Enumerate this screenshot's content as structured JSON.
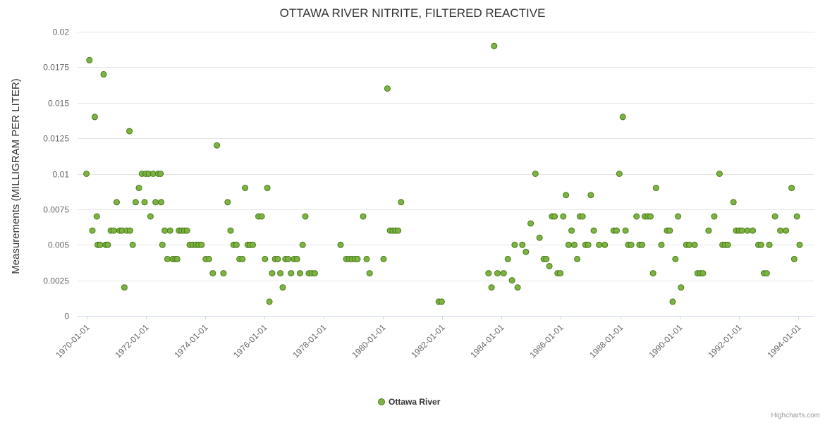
{
  "chart_data": {
    "type": "scatter",
    "title": "OTTAWA RIVER NITRITE, FILTERED REACTIVE",
    "xlabel": "",
    "ylabel": "Measurements (MILLIGRAM PER LITER)",
    "series_name": "Ottawa River",
    "legend": [
      "Ottawa River"
    ],
    "legend_position": "bottom-center",
    "grid": "horizontal",
    "x_range": [
      1969.7,
      1994.55
    ],
    "ylim": [
      0,
      0.02
    ],
    "yticks": [
      {
        "v": 0,
        "label": "0"
      },
      {
        "v": 0.0025,
        "label": "0.0025"
      },
      {
        "v": 0.005,
        "label": "0.005"
      },
      {
        "v": 0.0075,
        "label": "0.0075"
      },
      {
        "v": 0.01,
        "label": "0.01"
      },
      {
        "v": 0.0125,
        "label": "0.0125"
      },
      {
        "v": 0.015,
        "label": "0.015"
      },
      {
        "v": 0.0175,
        "label": "0.0175"
      },
      {
        "v": 0.02,
        "label": "0.02"
      }
    ],
    "xticks": [
      {
        "v": 1970,
        "label": "1970-01-01"
      },
      {
        "v": 1972,
        "label": "1972-01-01"
      },
      {
        "v": 1974,
        "label": "1974-01-01"
      },
      {
        "v": 1976,
        "label": "1976-01-01"
      },
      {
        "v": 1978,
        "label": "1978-01-01"
      },
      {
        "v": 1980,
        "label": "1980-01-01"
      },
      {
        "v": 1982,
        "label": "1982-01-01"
      },
      {
        "v": 1984,
        "label": "1984-01-01"
      },
      {
        "v": 1986,
        "label": "1986-01-01"
      },
      {
        "v": 1988,
        "label": "1988-01-01"
      },
      {
        "v": 1990,
        "label": "1990-01-01"
      },
      {
        "v": 1992,
        "label": "1992-01-01"
      },
      {
        "v": 1994,
        "label": "1994-01-01"
      }
    ],
    "points": [
      [
        1970.0,
        0.01
      ],
      [
        1970.1,
        0.018
      ],
      [
        1970.2,
        0.006
      ],
      [
        1970.28,
        0.014
      ],
      [
        1970.35,
        0.007
      ],
      [
        1970.38,
        0.005
      ],
      [
        1970.46,
        0.005
      ],
      [
        1970.58,
        0.017
      ],
      [
        1970.65,
        0.005
      ],
      [
        1970.72,
        0.005
      ],
      [
        1970.82,
        0.006
      ],
      [
        1970.92,
        0.006
      ],
      [
        1971.02,
        0.008
      ],
      [
        1971.12,
        0.006
      ],
      [
        1971.2,
        0.006
      ],
      [
        1971.28,
        0.002
      ],
      [
        1971.36,
        0.006
      ],
      [
        1971.45,
        0.013
      ],
      [
        1971.47,
        0.006
      ],
      [
        1971.56,
        0.005
      ],
      [
        1971.66,
        0.008
      ],
      [
        1971.77,
        0.009
      ],
      [
        1971.87,
        0.01
      ],
      [
        1971.96,
        0.008
      ],
      [
        1972.0,
        0.01
      ],
      [
        1972.1,
        0.01
      ],
      [
        1972.16,
        0.007
      ],
      [
        1972.25,
        0.01
      ],
      [
        1972.33,
        0.008
      ],
      [
        1972.42,
        0.01
      ],
      [
        1972.5,
        0.01
      ],
      [
        1972.52,
        0.008
      ],
      [
        1972.56,
        0.005
      ],
      [
        1972.64,
        0.006
      ],
      [
        1972.73,
        0.004
      ],
      [
        1972.82,
        0.006
      ],
      [
        1972.91,
        0.004
      ],
      [
        1973.0,
        0.004
      ],
      [
        1973.06,
        0.004
      ],
      [
        1973.12,
        0.006
      ],
      [
        1973.21,
        0.006
      ],
      [
        1973.3,
        0.006
      ],
      [
        1973.39,
        0.006
      ],
      [
        1973.48,
        0.005
      ],
      [
        1973.58,
        0.005
      ],
      [
        1973.69,
        0.005
      ],
      [
        1973.78,
        0.005
      ],
      [
        1973.88,
        0.005
      ],
      [
        1974.02,
        0.004
      ],
      [
        1974.13,
        0.004
      ],
      [
        1974.26,
        0.003
      ],
      [
        1974.4,
        0.012
      ],
      [
        1974.62,
        0.003
      ],
      [
        1974.76,
        0.008
      ],
      [
        1974.86,
        0.006
      ],
      [
        1974.96,
        0.005
      ],
      [
        1975.06,
        0.005
      ],
      [
        1975.16,
        0.004
      ],
      [
        1975.26,
        0.004
      ],
      [
        1975.35,
        0.009
      ],
      [
        1975.44,
        0.005
      ],
      [
        1975.52,
        0.005
      ],
      [
        1975.61,
        0.005
      ],
      [
        1975.8,
        0.007
      ],
      [
        1975.91,
        0.007
      ],
      [
        1976.02,
        0.004
      ],
      [
        1976.1,
        0.009
      ],
      [
        1976.17,
        0.001
      ],
      [
        1976.26,
        0.003
      ],
      [
        1976.36,
        0.004
      ],
      [
        1976.45,
        0.004
      ],
      [
        1976.54,
        0.003
      ],
      [
        1976.62,
        0.002
      ],
      [
        1976.71,
        0.004
      ],
      [
        1976.8,
        0.004
      ],
      [
        1976.9,
        0.003
      ],
      [
        1977.0,
        0.004
      ],
      [
        1977.1,
        0.004
      ],
      [
        1977.2,
        0.003
      ],
      [
        1977.29,
        0.005
      ],
      [
        1977.38,
        0.007
      ],
      [
        1977.5,
        0.003
      ],
      [
        1977.6,
        0.003
      ],
      [
        1977.7,
        0.003
      ],
      [
        1978.57,
        0.005
      ],
      [
        1978.76,
        0.004
      ],
      [
        1978.86,
        0.004
      ],
      [
        1978.95,
        0.004
      ],
      [
        1979.05,
        0.004
      ],
      [
        1979.14,
        0.004
      ],
      [
        1979.33,
        0.007
      ],
      [
        1979.45,
        0.004
      ],
      [
        1979.55,
        0.003
      ],
      [
        1980.02,
        0.004
      ],
      [
        1980.15,
        0.016
      ],
      [
        1980.24,
        0.006
      ],
      [
        1980.33,
        0.006
      ],
      [
        1980.42,
        0.006
      ],
      [
        1980.51,
        0.006
      ],
      [
        1980.61,
        0.008
      ],
      [
        1981.88,
        0.001
      ],
      [
        1981.98,
        0.001
      ],
      [
        1983.56,
        0.003
      ],
      [
        1983.66,
        0.002
      ],
      [
        1983.75,
        0.019
      ],
      [
        1983.86,
        0.003
      ],
      [
        1984.07,
        0.003
      ],
      [
        1984.21,
        0.004
      ],
      [
        1984.35,
        0.0025
      ],
      [
        1984.44,
        0.005
      ],
      [
        1984.54,
        0.002
      ],
      [
        1984.7,
        0.005
      ],
      [
        1984.82,
        0.0045
      ],
      [
        1984.98,
        0.0065
      ],
      [
        1985.14,
        0.01
      ],
      [
        1985.28,
        0.0055
      ],
      [
        1985.42,
        0.004
      ],
      [
        1985.51,
        0.004
      ],
      [
        1985.61,
        0.0035
      ],
      [
        1985.7,
        0.007
      ],
      [
        1985.79,
        0.007
      ],
      [
        1985.89,
        0.003
      ],
      [
        1985.98,
        0.003
      ],
      [
        1986.08,
        0.007
      ],
      [
        1986.17,
        0.0085
      ],
      [
        1986.26,
        0.005
      ],
      [
        1986.36,
        0.006
      ],
      [
        1986.45,
        0.005
      ],
      [
        1986.55,
        0.004
      ],
      [
        1986.64,
        0.007
      ],
      [
        1986.73,
        0.007
      ],
      [
        1986.83,
        0.005
      ],
      [
        1986.92,
        0.005
      ],
      [
        1987.01,
        0.0085
      ],
      [
        1987.11,
        0.006
      ],
      [
        1987.29,
        0.005
      ],
      [
        1987.48,
        0.005
      ],
      [
        1987.78,
        0.006
      ],
      [
        1987.88,
        0.006
      ],
      [
        1987.97,
        0.01
      ],
      [
        1988.09,
        0.014
      ],
      [
        1988.18,
        0.006
      ],
      [
        1988.27,
        0.005
      ],
      [
        1988.37,
        0.005
      ],
      [
        1988.55,
        0.007
      ],
      [
        1988.65,
        0.005
      ],
      [
        1988.74,
        0.005
      ],
      [
        1988.83,
        0.007
      ],
      [
        1988.93,
        0.007
      ],
      [
        1989.02,
        0.007
      ],
      [
        1989.11,
        0.003
      ],
      [
        1989.21,
        0.009
      ],
      [
        1989.39,
        0.005
      ],
      [
        1989.58,
        0.006
      ],
      [
        1989.67,
        0.006
      ],
      [
        1989.77,
        0.001
      ],
      [
        1989.86,
        0.004
      ],
      [
        1989.95,
        0.007
      ],
      [
        1990.05,
        0.002
      ],
      [
        1990.23,
        0.005
      ],
      [
        1990.33,
        0.005
      ],
      [
        1990.51,
        0.005
      ],
      [
        1990.61,
        0.003
      ],
      [
        1990.7,
        0.003
      ],
      [
        1990.79,
        0.003
      ],
      [
        1990.98,
        0.006
      ],
      [
        1991.17,
        0.007
      ],
      [
        1991.35,
        0.01
      ],
      [
        1991.45,
        0.005
      ],
      [
        1991.54,
        0.005
      ],
      [
        1991.63,
        0.005
      ],
      [
        1991.82,
        0.008
      ],
      [
        1991.91,
        0.006
      ],
      [
        1992.01,
        0.006
      ],
      [
        1992.1,
        0.006
      ],
      [
        1992.29,
        0.006
      ],
      [
        1992.47,
        0.006
      ],
      [
        1992.66,
        0.005
      ],
      [
        1992.75,
        0.005
      ],
      [
        1992.85,
        0.003
      ],
      [
        1992.94,
        0.003
      ],
      [
        1993.03,
        0.005
      ],
      [
        1993.22,
        0.007
      ],
      [
        1993.4,
        0.006
      ],
      [
        1993.59,
        0.006
      ],
      [
        1993.78,
        0.009
      ],
      [
        1993.87,
        0.004
      ],
      [
        1993.96,
        0.007
      ],
      [
        1994.05,
        0.005
      ]
    ]
  },
  "credits": "Highcharts.com",
  "colors": {
    "marker_fill": "#7cb342",
    "marker_stroke": "#4a7c18",
    "grid": "#e6e6e6",
    "axis_line": "#ccd6eb",
    "label": "#666666",
    "title": "#333333",
    "credits": "#999999",
    "background": "#ffffff"
  }
}
